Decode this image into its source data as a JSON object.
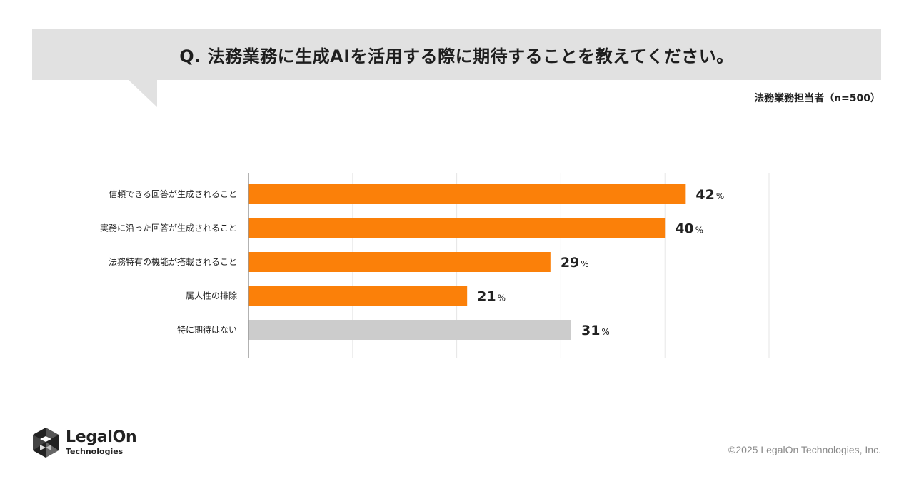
{
  "header": {
    "question": "Q. 法務業務に生成AIを活用する際に期待することを教えてください。",
    "respondents": "法務業務担当者（n=500）"
  },
  "chart_data": {
    "type": "bar",
    "orientation": "horizontal",
    "categories": [
      "信頼できる回答が生成されること",
      "実務に沿った回答が生成されること",
      "法務特有の機能が搭載されること",
      "属人性の排除",
      "特に期待はない"
    ],
    "values": [
      42,
      40,
      29,
      21,
      31
    ],
    "unit": "%",
    "bar_colors": [
      "#fb8009",
      "#fb8009",
      "#fb8009",
      "#fb8009",
      "#cccccc"
    ],
    "xlim": [
      0,
      50
    ],
    "grid": true
  },
  "footer": {
    "brand_name": "LegalOn",
    "brand_sub": "Technologies",
    "copyright": "©2025 LegalOn Technologies, Inc."
  }
}
